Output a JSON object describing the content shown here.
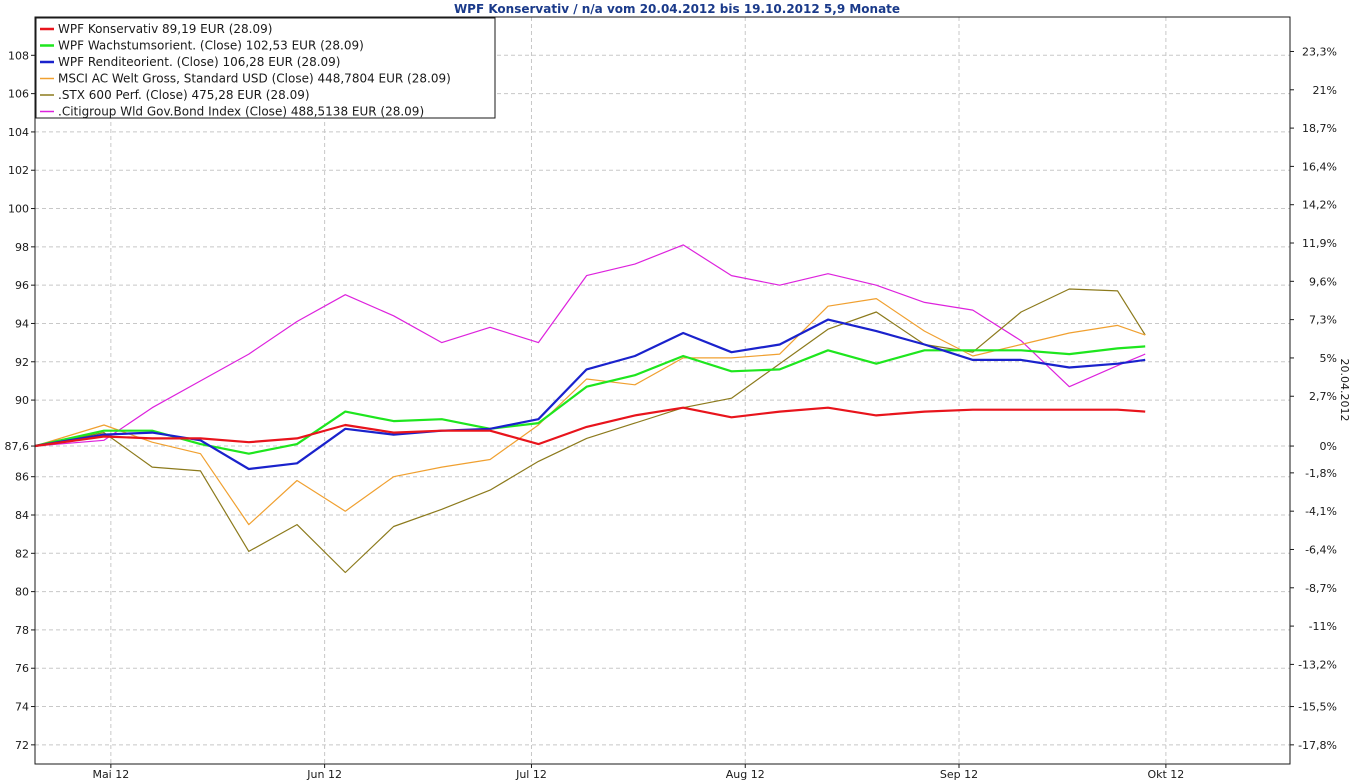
{
  "chart_data": {
    "type": "line",
    "title": "WPF Konservativ / n/a vom 20.04.2012 bis 19.10.2012 5,9 Monate",
    "right_axis_label": "20.04.2012",
    "ylim": [
      71,
      110
    ],
    "y_ticks": [
      72,
      74,
      76,
      78,
      80,
      82,
      84,
      86,
      87.6,
      90,
      92,
      94,
      96,
      98,
      100,
      102,
      104,
      106,
      108
    ],
    "y_tick_labels": [
      "72",
      "74",
      "76",
      "78",
      "80",
      "82",
      "84",
      "86",
      "87,6",
      "90",
      "92",
      "94",
      "96",
      "98",
      "100",
      "102",
      "104",
      "106",
      "108"
    ],
    "right_ticks": [
      {
        "value": 72.0,
        "label": "-17,8%"
      },
      {
        "value": 74.0,
        "label": "-15,5%"
      },
      {
        "value": 76.2,
        "label": "-13,2%"
      },
      {
        "value": 78.2,
        "label": "-11%"
      },
      {
        "value": 80.2,
        "label": "-8,7%"
      },
      {
        "value": 82.2,
        "label": "-6,4%"
      },
      {
        "value": 84.2,
        "label": "-4,1%"
      },
      {
        "value": 86.2,
        "label": "-1,8%"
      },
      {
        "value": 87.6,
        "label": "0%"
      },
      {
        "value": 90.2,
        "label": "2,7%"
      },
      {
        "value": 92.2,
        "label": "5%"
      },
      {
        "value": 94.2,
        "label": "7,3%"
      },
      {
        "value": 96.2,
        "label": "9,6%"
      },
      {
        "value": 98.2,
        "label": "11,9%"
      },
      {
        "value": 100.2,
        "label": "14,2%"
      },
      {
        "value": 102.2,
        "label": "16,4%"
      },
      {
        "value": 104.2,
        "label": "18,7%"
      },
      {
        "value": 106.2,
        "label": "21%"
      },
      {
        "value": 108.2,
        "label": "23,3%"
      }
    ],
    "x_range": [
      "2012-04-20",
      "2012-10-19"
    ],
    "x_ticks": [
      {
        "date": "2012-05-01",
        "label": "Mai 12"
      },
      {
        "date": "2012-06-01",
        "label": "Jun 12"
      },
      {
        "date": "2012-07-01",
        "label": "Jul 12"
      },
      {
        "date": "2012-08-01",
        "label": "Aug 12"
      },
      {
        "date": "2012-09-01",
        "label": "Sep 12"
      },
      {
        "date": "2012-10-01",
        "label": "Okt 12"
      }
    ],
    "x": [
      "2012-04-20",
      "2012-04-30",
      "2012-05-07",
      "2012-05-14",
      "2012-05-21",
      "2012-05-28",
      "2012-06-04",
      "2012-06-11",
      "2012-06-18",
      "2012-06-25",
      "2012-07-02",
      "2012-07-09",
      "2012-07-16",
      "2012-07-23",
      "2012-07-30",
      "2012-08-06",
      "2012-08-13",
      "2012-08-20",
      "2012-08-27",
      "2012-09-03",
      "2012-09-10",
      "2012-09-17",
      "2012-09-24",
      "2012-09-28"
    ],
    "grid": true,
    "legend_position": "top-left",
    "series": [
      {
        "name": "WPF Konservativ 89,19 EUR (28.09)",
        "color": "#e8141c",
        "width": 2.2,
        "values": [
          87.6,
          88.1,
          88.0,
          88.0,
          87.8,
          88.0,
          88.7,
          88.3,
          88.4,
          88.4,
          87.7,
          88.6,
          89.2,
          89.6,
          89.1,
          89.4,
          89.6,
          89.2,
          89.4,
          89.5,
          89.5,
          89.5,
          89.5,
          89.4
        ]
      },
      {
        "name": "WPF Wachstumsorient. (Close) 102,53 EUR (28.09)",
        "color": "#1ee61e",
        "width": 2.2,
        "values": [
          87.6,
          88.4,
          88.4,
          87.7,
          87.2,
          87.7,
          89.4,
          88.9,
          89.0,
          88.5,
          88.8,
          90.7,
          91.3,
          92.3,
          91.5,
          91.6,
          92.6,
          91.9,
          92.6,
          92.6,
          92.6,
          92.4,
          92.7,
          92.8
        ]
      },
      {
        "name": "WPF Renditeorient. (Close) 106,28 EUR (28.09)",
        "color": "#1a22cc",
        "width": 2.2,
        "values": [
          87.6,
          88.2,
          88.3,
          87.9,
          86.4,
          86.7,
          88.5,
          88.2,
          88.4,
          88.5,
          89.0,
          91.6,
          92.3,
          93.5,
          92.5,
          92.9,
          94.2,
          93.6,
          92.9,
          92.1,
          92.1,
          91.7,
          91.9,
          92.1
        ]
      },
      {
        "name": "MSCI AC Welt Gross, Standard USD (Close) 448,7804 EUR (28.09)",
        "color": "#f0a030",
        "width": 1.2,
        "values": [
          87.6,
          88.7,
          87.8,
          87.2,
          83.5,
          85.8,
          84.2,
          86.0,
          86.5,
          86.9,
          88.7,
          91.1,
          90.8,
          92.2,
          92.2,
          92.4,
          94.9,
          95.3,
          93.6,
          92.3,
          92.9,
          93.5,
          93.9,
          93.4
        ]
      },
      {
        "name": ".STX 600 Perf. (Close) 475,28 EUR (28.09)",
        "color": "#8c7a1c",
        "width": 1.2,
        "values": [
          87.6,
          88.3,
          86.5,
          86.3,
          82.1,
          83.5,
          81.0,
          83.4,
          84.3,
          85.3,
          86.8,
          88.0,
          88.8,
          89.6,
          90.1,
          91.9,
          93.7,
          94.6,
          92.9,
          92.5,
          94.6,
          95.8,
          95.7,
          93.4
        ]
      },
      {
        "name": ".Citigroup Wld Gov.Bond Index (Close) 488,5138 EUR (28.09)",
        "color": "#dd22dd",
        "width": 1.2,
        "values": [
          87.6,
          87.9,
          89.6,
          91.0,
          92.4,
          94.1,
          95.5,
          94.4,
          93.0,
          93.8,
          93.0,
          96.5,
          97.1,
          98.1,
          96.5,
          96.0,
          96.6,
          96.0,
          95.1,
          94.7,
          93.1,
          90.7,
          91.8,
          92.4
        ]
      }
    ]
  }
}
